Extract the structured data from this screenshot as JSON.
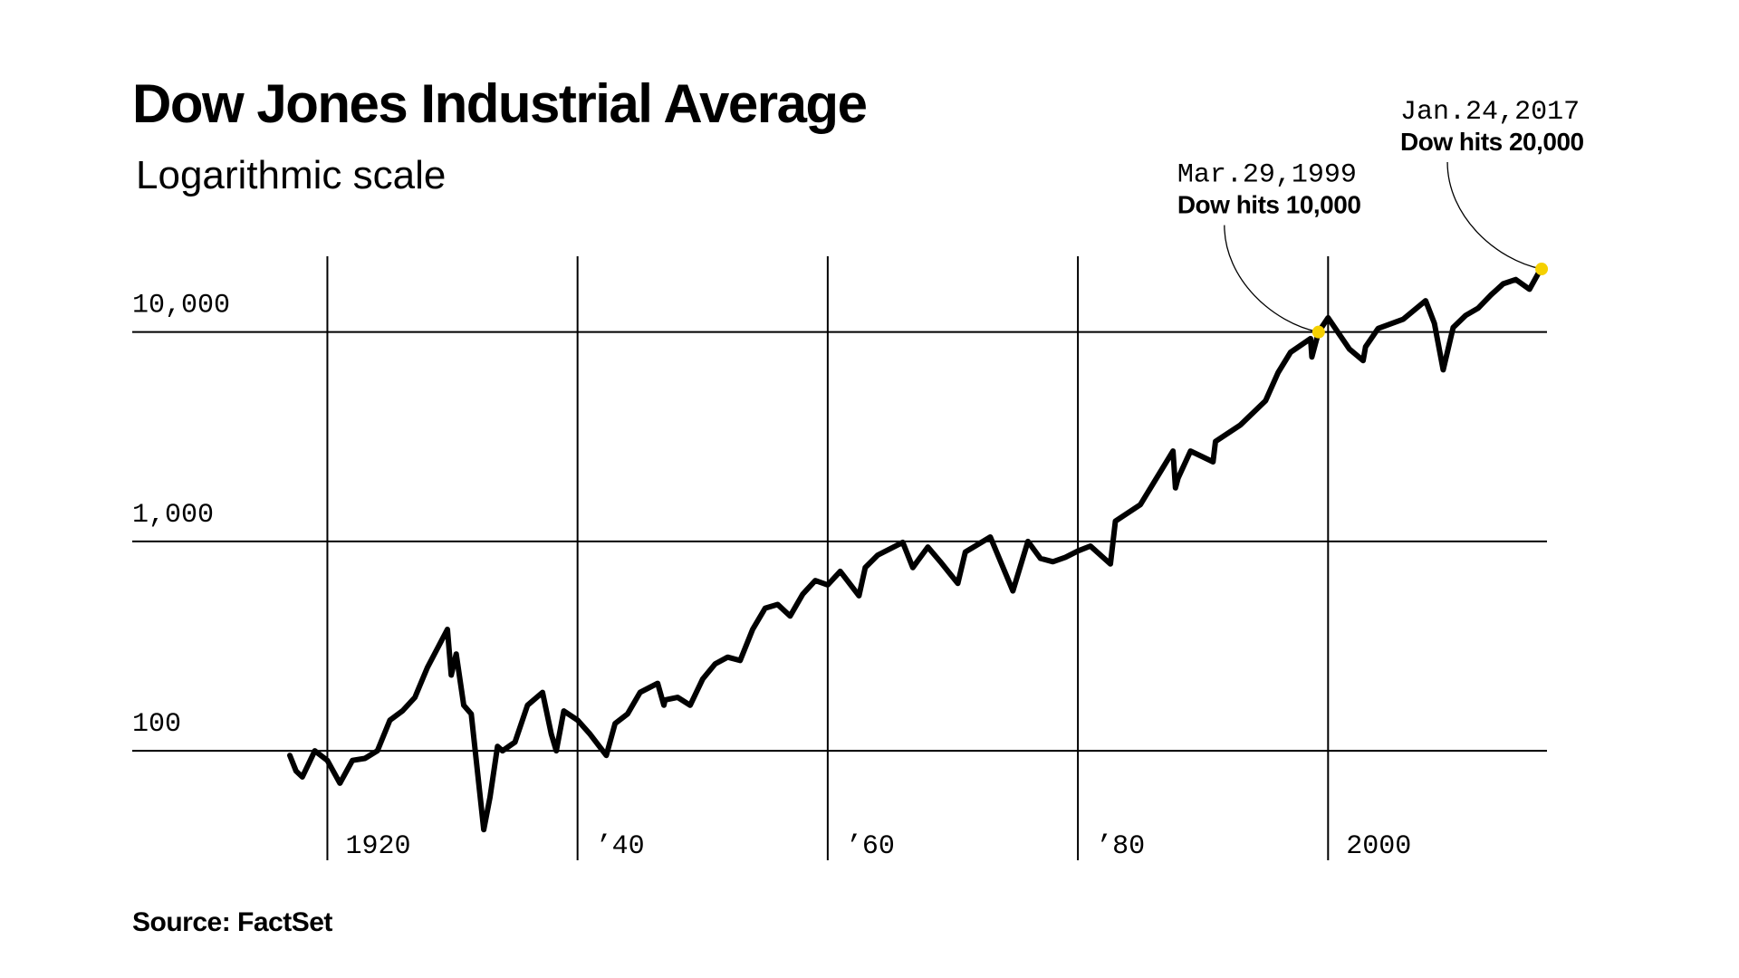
{
  "chart_data": {
    "type": "line",
    "title": "Dow Jones Industrial Average",
    "subtitle": "Logarithmic scale",
    "source": "Source: FactSet",
    "log_scale": true,
    "grid": true,
    "color": "#000000",
    "marker_color": "#f5d000",
    "xlim": [
      1904.4,
      2017.5
    ],
    "xticks": [
      1920,
      {
        "value": 1940,
        "label": "’40"
      },
      {
        "value": 1960,
        "label": "’60"
      },
      {
        "value": 1980,
        "label": "’80"
      },
      2000
    ],
    "ylim": [
      30,
      23000
    ],
    "yticks": [
      100,
      {
        "value": 1000,
        "label": "1,000"
      },
      {
        "value": 10000,
        "label": "10,000"
      }
    ],
    "x": [
      1917,
      1917.5,
      1918,
      1919,
      1920,
      1921,
      1922,
      1923,
      1924,
      1925,
      1926,
      1927,
      1928,
      1929.6,
      1929.9,
      1930.3,
      1930.9,
      1931.5,
      1932.5,
      1933,
      1933.6,
      1934,
      1935,
      1936,
      1937.2,
      1937.9,
      1938.3,
      1938.9,
      1940,
      1941,
      1942.3,
      1943,
      1944,
      1945,
      1946.4,
      1946.9,
      1947,
      1948,
      1949,
      1950,
      1951,
      1952,
      1953,
      1954,
      1955,
      1956,
      1957,
      1958,
      1959,
      1960,
      1961,
      1962.5,
      1963,
      1964,
      1966,
      1966.8,
      1968,
      1969,
      1970.4,
      1971,
      1973,
      1974.8,
      1976,
      1977,
      1978,
      1979,
      1980,
      1981,
      1982.6,
      1983,
      1985,
      1987.6,
      1987.8,
      1988,
      1989,
      1990.8,
      1991,
      1993,
      1995,
      1996,
      1997,
      1998.6,
      1998.7,
      1999.24,
      2000,
      2001.7,
      2002.8,
      2003,
      2004,
      2006,
      2007.8,
      2008.5,
      2009.2,
      2010,
      2011,
      2012,
      2013,
      2014,
      2015,
      2016.1,
      2016.9,
      2017.07
    ],
    "values": [
      95,
      80,
      75,
      100,
      90,
      70,
      90,
      92,
      100,
      140,
      155,
      180,
      250,
      380,
      230,
      290,
      165,
      150,
      42,
      60,
      105,
      100,
      110,
      165,
      190,
      120,
      100,
      155,
      140,
      120,
      95,
      135,
      150,
      190,
      210,
      165,
      175,
      180,
      165,
      220,
      260,
      280,
      270,
      380,
      480,
      500,
      440,
      560,
      650,
      620,
      720,
      550,
      750,
      860,
      990,
      750,
      940,
      800,
      630,
      890,
      1050,
      580,
      1000,
      830,
      800,
      840,
      900,
      950,
      780,
      1250,
      1500,
      2700,
      1800,
      2000,
      2700,
      2400,
      3000,
      3600,
      4700,
      6400,
      8000,
      9300,
      7600,
      10000,
      11700,
      8300,
      7300,
      8500,
      10400,
      11500,
      14100,
      11000,
      6600,
      10500,
      12000,
      13000,
      15000,
      17000,
      17800,
      16000,
      19500,
      20000
    ],
    "annotations": [
      {
        "x": 1999.24,
        "y": 10000,
        "date": "Mar.29,1999",
        "text": "Dow hits 10,000"
      },
      {
        "x": 2017.07,
        "y": 20000,
        "date": "Jan.24,2017",
        "text": "Dow hits 20,000"
      }
    ]
  }
}
